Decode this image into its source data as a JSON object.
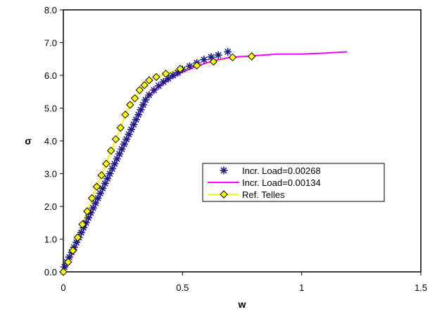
{
  "chart_data": {
    "type": "line",
    "title": "",
    "xlabel": "w",
    "ylabel": "σ",
    "xlim": [
      0,
      1.5
    ],
    "ylim": [
      0,
      8.0
    ],
    "x_ticks": [
      0,
      0.5,
      1,
      1.5
    ],
    "x_tick_labels": [
      "0",
      "0.5",
      "1",
      "1.5"
    ],
    "y_ticks": [
      0,
      1,
      2,
      3,
      4,
      5,
      6,
      7,
      8
    ],
    "y_tick_labels": [
      "0.0",
      "1.0",
      "2.0",
      "3.0",
      "4.0",
      "5.0",
      "6.0",
      "7.0",
      "8.0"
    ],
    "grid": false,
    "legend_position": "center-right",
    "series": [
      {
        "name": "Incr. Load=0.00268",
        "marker": "asterisk",
        "color": "#1a1a80",
        "x": [
          0.005,
          0.015,
          0.025,
          0.035,
          0.045,
          0.055,
          0.065,
          0.075,
          0.085,
          0.095,
          0.105,
          0.115,
          0.125,
          0.135,
          0.145,
          0.155,
          0.165,
          0.175,
          0.185,
          0.195,
          0.205,
          0.215,
          0.225,
          0.235,
          0.245,
          0.255,
          0.265,
          0.275,
          0.285,
          0.295,
          0.305,
          0.315,
          0.325,
          0.335,
          0.345,
          0.36,
          0.38,
          0.4,
          0.42,
          0.44,
          0.46,
          0.48,
          0.5,
          0.53,
          0.56,
          0.59,
          0.62,
          0.65,
          0.69
        ],
        "y": [
          0.15,
          0.3,
          0.45,
          0.6,
          0.75,
          0.9,
          1.05,
          1.2,
          1.35,
          1.5,
          1.65,
          1.8,
          1.95,
          2.1,
          2.25,
          2.4,
          2.55,
          2.7,
          2.85,
          3.0,
          3.15,
          3.3,
          3.45,
          3.6,
          3.75,
          3.9,
          4.05,
          4.2,
          4.35,
          4.5,
          4.65,
          4.8,
          4.95,
          5.1,
          5.25,
          5.4,
          5.55,
          5.68,
          5.8,
          5.9,
          6.0,
          6.08,
          6.18,
          6.28,
          6.38,
          6.48,
          6.56,
          6.62,
          6.72
        ]
      },
      {
        "name": "Incr. Load=0.00134",
        "marker": "none",
        "color": "#ff00ff",
        "x": [
          0,
          0.05,
          0.1,
          0.15,
          0.2,
          0.25,
          0.3,
          0.35,
          0.4,
          0.45,
          0.5,
          0.55,
          0.6,
          0.65,
          0.7,
          0.8,
          0.9,
          1.0,
          1.1,
          1.19
        ],
        "y": [
          0,
          0.75,
          1.5,
          2.25,
          3.0,
          3.75,
          4.5,
          5.3,
          5.65,
          5.9,
          6.1,
          6.25,
          6.38,
          6.48,
          6.55,
          6.6,
          6.65,
          6.65,
          6.68,
          6.72
        ]
      },
      {
        "name": "Ref. Telles",
        "marker": "diamond",
        "color": "#ffff00",
        "marker_edge": "#000000",
        "x": [
          0,
          0.02,
          0.04,
          0.06,
          0.08,
          0.1,
          0.12,
          0.14,
          0.16,
          0.18,
          0.2,
          0.22,
          0.24,
          0.26,
          0.28,
          0.3,
          0.32,
          0.34,
          0.36,
          0.39,
          0.43,
          0.49,
          0.56,
          0.63,
          0.71,
          0.79
        ],
        "y": [
          0,
          0.3,
          0.65,
          1.05,
          1.45,
          1.85,
          2.25,
          2.6,
          2.95,
          3.3,
          3.7,
          4.05,
          4.4,
          4.8,
          5.1,
          5.3,
          5.55,
          5.7,
          5.85,
          5.95,
          6.05,
          6.2,
          6.3,
          6.42,
          6.55,
          6.58
        ]
      }
    ]
  }
}
